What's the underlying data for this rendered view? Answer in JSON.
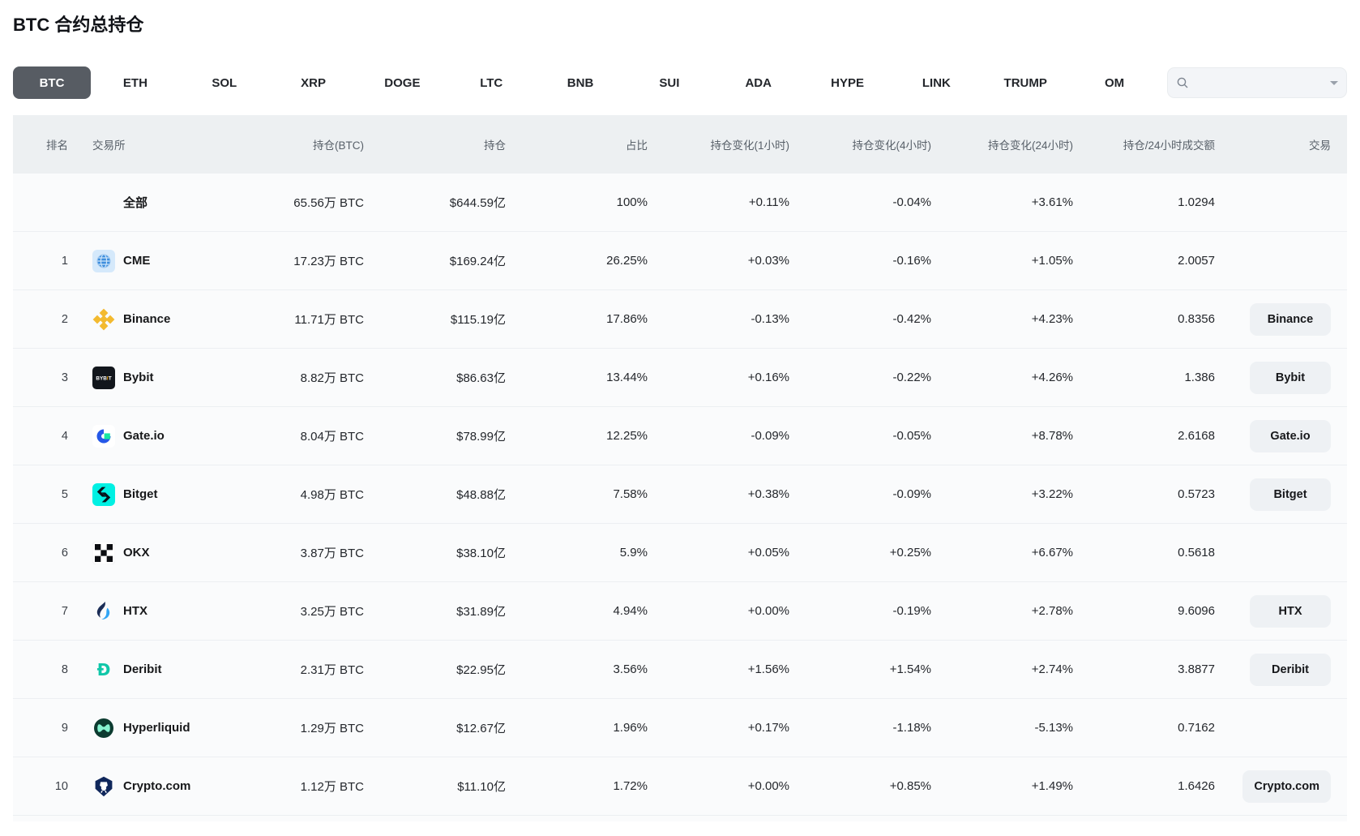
{
  "page": {
    "title": "BTC 合约总持仓"
  },
  "tabs": {
    "items": [
      {
        "label": "BTC",
        "selected": true
      },
      {
        "label": "ETH",
        "selected": false
      },
      {
        "label": "SOL",
        "selected": false
      },
      {
        "label": "XRP",
        "selected": false
      },
      {
        "label": "DOGE",
        "selected": false
      },
      {
        "label": "LTC",
        "selected": false
      },
      {
        "label": "BNB",
        "selected": false
      },
      {
        "label": "SUI",
        "selected": false
      },
      {
        "label": "ADA",
        "selected": false
      },
      {
        "label": "HYPE",
        "selected": false
      },
      {
        "label": "LINK",
        "selected": false
      },
      {
        "label": "TRUMP",
        "selected": false
      },
      {
        "label": "OM",
        "selected": false
      }
    ],
    "search": {
      "placeholder": "",
      "value": "",
      "icon": "search-icon",
      "caret_icon": "chevron-down-icon"
    }
  },
  "table": {
    "headers": [
      "排名",
      "交易所",
      "持仓(BTC)",
      "持仓",
      "占比",
      "持仓变化(1小时)",
      "持仓变化(4小时)",
      "持仓变化(24小时)",
      "持仓/24小时成交额",
      "交易"
    ],
    "rows": [
      {
        "rank": "",
        "name": "全部",
        "icon": null,
        "oi_btc": "65.56万 BTC",
        "oi_usd": "$644.59亿",
        "share": "100%",
        "chg_1h": "+0.11%",
        "chg_4h": "-0.04%",
        "chg_24h": "+3.61%",
        "oi_vol_ratio": "1.0294",
        "trade_label": null
      },
      {
        "rank": "1",
        "name": "CME",
        "icon": "cme-logo",
        "oi_btc": "17.23万 BTC",
        "oi_usd": "$169.24亿",
        "share": "26.25%",
        "chg_1h": "+0.03%",
        "chg_4h": "-0.16%",
        "chg_24h": "+1.05%",
        "oi_vol_ratio": "2.0057",
        "trade_label": null
      },
      {
        "rank": "2",
        "name": "Binance",
        "icon": "binance-logo",
        "oi_btc": "11.71万 BTC",
        "oi_usd": "$115.19亿",
        "share": "17.86%",
        "chg_1h": "-0.13%",
        "chg_4h": "-0.42%",
        "chg_24h": "+4.23%",
        "oi_vol_ratio": "0.8356",
        "trade_label": "Binance"
      },
      {
        "rank": "3",
        "name": "Bybit",
        "icon": "bybit-logo",
        "oi_btc": "8.82万 BTC",
        "oi_usd": "$86.63亿",
        "share": "13.44%",
        "chg_1h": "+0.16%",
        "chg_4h": "-0.22%",
        "chg_24h": "+4.26%",
        "oi_vol_ratio": "1.386",
        "trade_label": "Bybit"
      },
      {
        "rank": "4",
        "name": "Gate.io",
        "icon": "gateio-logo",
        "oi_btc": "8.04万 BTC",
        "oi_usd": "$78.99亿",
        "share": "12.25%",
        "chg_1h": "-0.09%",
        "chg_4h": "-0.05%",
        "chg_24h": "+8.78%",
        "oi_vol_ratio": "2.6168",
        "trade_label": "Gate.io"
      },
      {
        "rank": "5",
        "name": "Bitget",
        "icon": "bitget-logo",
        "oi_btc": "4.98万 BTC",
        "oi_usd": "$48.88亿",
        "share": "7.58%",
        "chg_1h": "+0.38%",
        "chg_4h": "-0.09%",
        "chg_24h": "+3.22%",
        "oi_vol_ratio": "0.5723",
        "trade_label": "Bitget"
      },
      {
        "rank": "6",
        "name": "OKX",
        "icon": "okx-logo",
        "oi_btc": "3.87万 BTC",
        "oi_usd": "$38.10亿",
        "share": "5.9%",
        "chg_1h": "+0.05%",
        "chg_4h": "+0.25%",
        "chg_24h": "+6.67%",
        "oi_vol_ratio": "0.5618",
        "trade_label": null
      },
      {
        "rank": "7",
        "name": "HTX",
        "icon": "htx-logo",
        "oi_btc": "3.25万 BTC",
        "oi_usd": "$31.89亿",
        "share": "4.94%",
        "chg_1h": "+0.00%",
        "chg_4h": "-0.19%",
        "chg_24h": "+2.78%",
        "oi_vol_ratio": "9.6096",
        "trade_label": "HTX"
      },
      {
        "rank": "8",
        "name": "Deribit",
        "icon": "deribit-logo",
        "oi_btc": "2.31万 BTC",
        "oi_usd": "$22.95亿",
        "share": "3.56%",
        "chg_1h": "+1.56%",
        "chg_4h": "+1.54%",
        "chg_24h": "+2.74%",
        "oi_vol_ratio": "3.8877",
        "trade_label": "Deribit"
      },
      {
        "rank": "9",
        "name": "Hyperliquid",
        "icon": "hyperliquid-logo",
        "oi_btc": "1.29万 BTC",
        "oi_usd": "$12.67亿",
        "share": "1.96%",
        "chg_1h": "+0.17%",
        "chg_4h": "-1.18%",
        "chg_24h": "-5.13%",
        "oi_vol_ratio": "0.7162",
        "trade_label": null
      },
      {
        "rank": "10",
        "name": "Crypto.com",
        "icon": "cryptocom-logo",
        "oi_btc": "1.12万 BTC",
        "oi_usd": "$11.10亿",
        "share": "1.72%",
        "chg_1h": "+0.00%",
        "chg_4h": "+0.85%",
        "chg_24h": "+1.49%",
        "oi_vol_ratio": "1.6426",
        "trade_label": "Crypto.com"
      }
    ]
  },
  "colors": {
    "positive": "#2ebd85",
    "negative": "#f5475d",
    "neutral_text": "#24272c",
    "selected_tab_bg": "#575c63",
    "header_bg": "#edf0f2",
    "row_bg": "#fafbfc",
    "trade_button_bg": "#eef1f4"
  }
}
